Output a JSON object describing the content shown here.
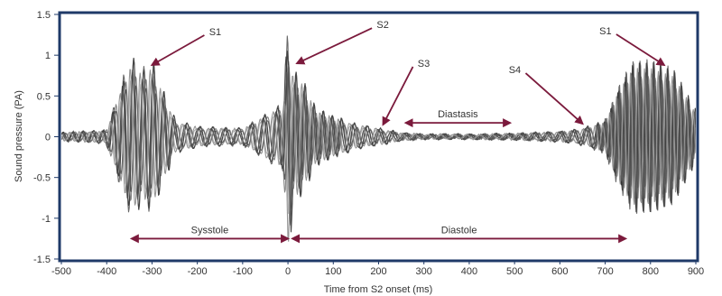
{
  "chart_data": {
    "type": "line",
    "title": "",
    "xlabel": "Time from S2 onset (ms)",
    "ylabel": "Sound pressure (PA)",
    "xlim": [
      -500,
      900
    ],
    "ylim": [
      -1.5,
      1.5
    ],
    "x_ticks": [
      -500,
      -400,
      -300,
      -200,
      -100,
      0,
      100,
      200,
      300,
      400,
      500,
      600,
      700,
      800,
      900
    ],
    "y_ticks": [
      1.5,
      1,
      0.5,
      0,
      -0.5,
      -1,
      -1.5
    ],
    "grid": false,
    "frame_color": "#1f3a68",
    "trace_color": "#1a1a1a",
    "arrow_color": "#7b1a3c",
    "overlaid_trace_count": 8,
    "envelope": {
      "note": "approximate peak amplitude envelope of the overlaid waveforms (PA)",
      "x": [
        -500,
        -400,
        -360,
        -345,
        -320,
        -300,
        -280,
        -250,
        -200,
        -100,
        -10,
        0,
        10,
        30,
        60,
        100,
        150,
        200,
        250,
        300,
        400,
        500,
        600,
        650,
        700,
        730,
        760,
        800,
        850,
        900
      ],
      "y": [
        0.05,
        0.08,
        0.75,
        0.95,
        0.8,
        0.9,
        0.6,
        0.2,
        0.12,
        0.1,
        0.4,
        1.25,
        0.8,
        0.7,
        0.35,
        0.25,
        0.15,
        0.1,
        0.05,
        0.03,
        0.03,
        0.04,
        0.06,
        0.1,
        0.2,
        0.6,
        0.9,
        0.9,
        0.8,
        0.3
      ]
    },
    "annotations": [
      {
        "label": "S1",
        "target": [
          -300,
          0.88
        ]
      },
      {
        "label": "S2",
        "target": [
          20,
          0.9
        ]
      },
      {
        "label": "S3",
        "target": [
          210,
          0.15
        ]
      },
      {
        "label": "S4",
        "target": [
          650,
          0.16
        ]
      },
      {
        "label": "S1",
        "target": [
          830,
          0.88
        ]
      }
    ],
    "intervals": [
      {
        "label": "Diastasis",
        "from": 260,
        "to": 490,
        "y": 0.17
      },
      {
        "label": "Sysstole",
        "from": -345,
        "to": 0,
        "y": -1.25
      },
      {
        "label": "Diastole",
        "from": 10,
        "to": 745,
        "y": -1.25
      }
    ]
  }
}
